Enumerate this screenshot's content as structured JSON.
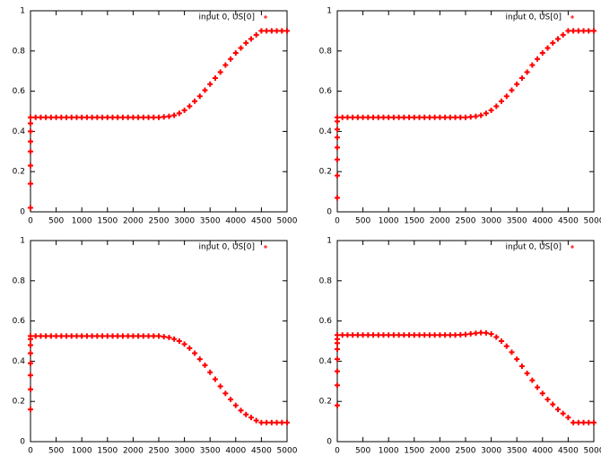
{
  "chart_data": [
    {
      "type": "scatter",
      "legend": "upper right",
      "xlim": [
        0,
        5000
      ],
      "ylim": [
        0,
        1
      ],
      "xticks": [
        0,
        500,
        1000,
        1500,
        2000,
        2500,
        3000,
        3500,
        4000,
        4500,
        5000
      ],
      "yticks": [
        0,
        0.2,
        0.4,
        0.6,
        0.8,
        1
      ],
      "series": [
        {
          "name": "input 0, US[0]",
          "color": "#ff0000",
          "x": [
            0,
            0,
            0,
            0,
            0,
            0,
            0,
            0,
            100,
            200,
            300,
            400,
            500,
            600,
            700,
            800,
            900,
            1000,
            1100,
            1200,
            1300,
            1400,
            1500,
            1600,
            1700,
            1800,
            1900,
            2000,
            2100,
            2200,
            2300,
            2400,
            2500,
            2600,
            2700,
            2800,
            2900,
            3000,
            3100,
            3200,
            3300,
            3400,
            3500,
            3600,
            3700,
            3800,
            3900,
            4000,
            4100,
            4200,
            4300,
            4400,
            4500,
            4600,
            4700,
            4800,
            4900,
            5000
          ],
          "values": [
            0.02,
            0.14,
            0.23,
            0.3,
            0.35,
            0.4,
            0.44,
            0.47,
            0.47,
            0.47,
            0.47,
            0.47,
            0.47,
            0.47,
            0.47,
            0.47,
            0.47,
            0.47,
            0.47,
            0.47,
            0.47,
            0.47,
            0.47,
            0.47,
            0.47,
            0.47,
            0.47,
            0.47,
            0.47,
            0.47,
            0.47,
            0.47,
            0.47,
            0.472,
            0.475,
            0.48,
            0.49,
            0.505,
            0.525,
            0.55,
            0.575,
            0.605,
            0.635,
            0.665,
            0.695,
            0.73,
            0.76,
            0.79,
            0.815,
            0.84,
            0.86,
            0.88,
            0.9,
            0.9,
            0.9,
            0.9,
            0.9,
            0.9
          ]
        }
      ]
    },
    {
      "type": "scatter",
      "legend": "upper right",
      "xlim": [
        0,
        5000
      ],
      "ylim": [
        0,
        1
      ],
      "xticks": [
        0,
        500,
        1000,
        1500,
        2000,
        2500,
        3000,
        3500,
        4000,
        4500,
        5000
      ],
      "yticks": [
        0,
        0.2,
        0.4,
        0.6,
        0.8,
        1
      ],
      "series": [
        {
          "name": "input 0, US[0]",
          "color": "#ff0000",
          "x": [
            0,
            0,
            0,
            0,
            0,
            0,
            0,
            0,
            100,
            200,
            300,
            400,
            500,
            600,
            700,
            800,
            900,
            1000,
            1100,
            1200,
            1300,
            1400,
            1500,
            1600,
            1700,
            1800,
            1900,
            2000,
            2100,
            2200,
            2300,
            2400,
            2500,
            2600,
            2700,
            2800,
            2900,
            3000,
            3100,
            3200,
            3300,
            3400,
            3500,
            3600,
            3700,
            3800,
            3900,
            4000,
            4100,
            4200,
            4300,
            4400,
            4500,
            4600,
            4700,
            4800,
            4900,
            5000
          ],
          "values": [
            0.07,
            0.18,
            0.26,
            0.32,
            0.37,
            0.41,
            0.45,
            0.47,
            0.47,
            0.47,
            0.47,
            0.47,
            0.47,
            0.47,
            0.47,
            0.47,
            0.47,
            0.47,
            0.47,
            0.47,
            0.47,
            0.47,
            0.47,
            0.47,
            0.47,
            0.47,
            0.47,
            0.47,
            0.47,
            0.47,
            0.47,
            0.47,
            0.47,
            0.472,
            0.475,
            0.48,
            0.49,
            0.505,
            0.525,
            0.55,
            0.575,
            0.605,
            0.635,
            0.665,
            0.695,
            0.73,
            0.76,
            0.79,
            0.815,
            0.84,
            0.86,
            0.88,
            0.9,
            0.9,
            0.9,
            0.9,
            0.9,
            0.9
          ]
        }
      ]
    },
    {
      "type": "scatter",
      "legend": "upper right",
      "xlim": [
        0,
        5000
      ],
      "ylim": [
        0,
        1
      ],
      "xticks": [
        0,
        500,
        1000,
        1500,
        2000,
        2500,
        3000,
        3500,
        4000,
        4500,
        5000
      ],
      "yticks": [
        0,
        0.2,
        0.4,
        0.6,
        0.8,
        1
      ],
      "series": [
        {
          "name": "input 0, US[0]",
          "color": "#ff0000",
          "x": [
            0,
            0,
            0,
            0,
            0,
            0,
            0,
            0,
            100,
            200,
            300,
            400,
            500,
            600,
            700,
            800,
            900,
            1000,
            1100,
            1200,
            1300,
            1400,
            1500,
            1600,
            1700,
            1800,
            1900,
            2000,
            2100,
            2200,
            2300,
            2400,
            2500,
            2600,
            2700,
            2800,
            2900,
            3000,
            3100,
            3200,
            3300,
            3400,
            3500,
            3600,
            3700,
            3800,
            3900,
            4000,
            4100,
            4200,
            4300,
            4400,
            4500,
            4600,
            4700,
            4800,
            4900,
            5000
          ],
          "values": [
            0.16,
            0.26,
            0.33,
            0.39,
            0.44,
            0.48,
            0.51,
            0.525,
            0.525,
            0.525,
            0.525,
            0.525,
            0.525,
            0.525,
            0.525,
            0.525,
            0.525,
            0.525,
            0.525,
            0.525,
            0.525,
            0.525,
            0.525,
            0.525,
            0.525,
            0.525,
            0.525,
            0.525,
            0.525,
            0.525,
            0.525,
            0.525,
            0.525,
            0.522,
            0.518,
            0.51,
            0.5,
            0.485,
            0.465,
            0.44,
            0.41,
            0.38,
            0.345,
            0.31,
            0.275,
            0.24,
            0.21,
            0.18,
            0.155,
            0.135,
            0.12,
            0.105,
            0.095,
            0.095,
            0.095,
            0.095,
            0.095,
            0.095
          ]
        }
      ]
    },
    {
      "type": "scatter",
      "legend": "upper right",
      "xlim": [
        0,
        5000
      ],
      "ylim": [
        0,
        1
      ],
      "xticks": [
        0,
        500,
        1000,
        1500,
        2000,
        2500,
        3000,
        3500,
        4000,
        4500,
        5000
      ],
      "yticks": [
        0,
        0.2,
        0.4,
        0.6,
        0.8,
        1
      ],
      "series": [
        {
          "name": "input 0, US[0]",
          "color": "#ff0000",
          "x": [
            0,
            0,
            0,
            0,
            0,
            0,
            0,
            0,
            100,
            200,
            300,
            400,
            500,
            600,
            700,
            800,
            900,
            1000,
            1100,
            1200,
            1300,
            1400,
            1500,
            1600,
            1700,
            1800,
            1900,
            2000,
            2100,
            2200,
            2300,
            2400,
            2500,
            2600,
            2700,
            2800,
            2900,
            3000,
            3100,
            3200,
            3300,
            3400,
            3500,
            3600,
            3700,
            3800,
            3900,
            4000,
            4100,
            4200,
            4300,
            4400,
            4500,
            4600,
            4700,
            4800,
            4900,
            5000
          ],
          "values": [
            0.18,
            0.28,
            0.35,
            0.41,
            0.46,
            0.49,
            0.51,
            0.53,
            0.53,
            0.53,
            0.53,
            0.53,
            0.53,
            0.53,
            0.53,
            0.53,
            0.53,
            0.53,
            0.53,
            0.53,
            0.53,
            0.53,
            0.53,
            0.53,
            0.53,
            0.53,
            0.53,
            0.53,
            0.53,
            0.53,
            0.53,
            0.531,
            0.533,
            0.536,
            0.539,
            0.542,
            0.541,
            0.535,
            0.52,
            0.5,
            0.475,
            0.445,
            0.41,
            0.375,
            0.34,
            0.305,
            0.27,
            0.24,
            0.21,
            0.185,
            0.16,
            0.14,
            0.12,
            0.095,
            0.095,
            0.095,
            0.095,
            0.095
          ]
        }
      ]
    }
  ]
}
